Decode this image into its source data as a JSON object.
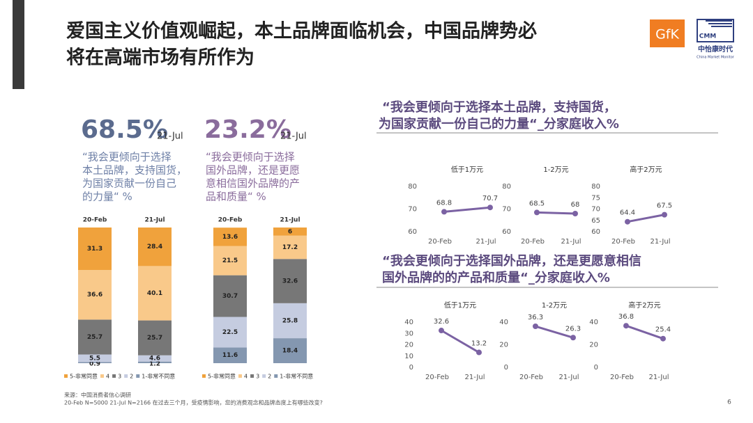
{
  "title": [
    "爱国主义价值观崛起，本土品牌面临机会，中国品牌势必",
    "将在高端市场有所作为"
  ],
  "logos": {
    "gfk": "GfK",
    "cmm": "CMM",
    "cmm_cn": "中怡康时代",
    "cmm_en": "China Market Monitor"
  },
  "stats": [
    {
      "value": "68.5%",
      "date": "21-Jul",
      "text": [
        "“我会更倾向于选择",
        "本土品牌，支持国货，",
        "为国家贡献一份自己",
        "的力量“ %"
      ]
    },
    {
      "value": "23.2%",
      "date": "21-Jul",
      "text": [
        "“我会更倾向于选择",
        "国外品牌，还是更愿",
        "意相信国外品牌的产",
        "品和质量“ %"
      ]
    }
  ],
  "right_titles": [
    [
      "“我会更倾向于选择本土品牌，支持国货，",
      "为国家贡献一份自己的力量“_分家庭收入%"
    ],
    [
      "“我会更倾向于选择国外品牌，还是更愿意相信",
      "国外品牌的的产品和质量“_分家庭收入%"
    ]
  ],
  "footnote": [
    "来源：中国消费者信心调研",
    "20-Feb N=5000 21-Jul N=2166  在过去三个月，受疫情影响，您的消费观念和品牌态度上有哪些改变?"
  ],
  "page_number": "6",
  "chart_data": [
    {
      "type": "stacked_bar",
      "categories": [
        "20-Feb",
        "21-Jul"
      ],
      "ylim": [
        0,
        100
      ],
      "legend": "bottom",
      "series": [
        {
          "name": "5-非常同意",
          "color": "#F0A23C",
          "values": [
            31.3,
            28.4
          ]
        },
        {
          "name": "4",
          "color": "#F9C98A",
          "values": [
            36.6,
            40.1
          ]
        },
        {
          "name": "3",
          "color": "#777777",
          "values": [
            25.7,
            25.7
          ]
        },
        {
          "name": "2",
          "color": "#C5CCE0",
          "values": [
            5.5,
            4.6
          ]
        },
        {
          "name": "1-非常不同意",
          "color": "#8497B0",
          "values": [
            0.9,
            1.2
          ]
        }
      ]
    },
    {
      "type": "stacked_bar",
      "categories": [
        "20-Feb",
        "21-Jul"
      ],
      "ylim": [
        0,
        100
      ],
      "legend": "bottom",
      "series": [
        {
          "name": "5-非常同意",
          "color": "#F0A23C",
          "values": [
            13.6,
            6
          ]
        },
        {
          "name": "4",
          "color": "#F9C98A",
          "values": [
            21.5,
            17.2
          ]
        },
        {
          "name": "3",
          "color": "#777777",
          "values": [
            30.7,
            32.6
          ]
        },
        {
          "name": "2",
          "color": "#C5CCE0",
          "values": [
            22.5,
            25.8
          ]
        },
        {
          "name": "1-非常不同意",
          "color": "#8497B0",
          "values": [
            11.6,
            18.4
          ]
        }
      ]
    },
    {
      "type": "line",
      "title": "低于1万元",
      "categories": [
        "20-Feb",
        "21-Jul"
      ],
      "values": [
        68.8,
        70.7
      ],
      "color": "#7B62A3",
      "ylim": [
        60,
        80
      ],
      "yticks": [
        60,
        70,
        80
      ]
    },
    {
      "type": "line",
      "title": "1-2万元",
      "categories": [
        "20-Feb",
        "21-Jul"
      ],
      "values": [
        68.5,
        68
      ],
      "color": "#7B62A3",
      "ylim": [
        60,
        80
      ],
      "yticks": [
        60,
        70,
        80
      ]
    },
    {
      "type": "line",
      "title": "高于2万元",
      "categories": [
        "20-Feb",
        "21-Jul"
      ],
      "values": [
        64.4,
        67.5
      ],
      "color": "#7B62A3",
      "ylim": [
        60,
        80
      ],
      "yticks": [
        60,
        65,
        70,
        75,
        80
      ]
    },
    {
      "type": "line",
      "title": "低于1万元",
      "categories": [
        "20-Feb",
        "21-Jul"
      ],
      "values": [
        32.6,
        13.2
      ],
      "color": "#7B62A3",
      "ylim": [
        0,
        40
      ],
      "yticks": [
        0,
        10,
        20,
        30,
        40
      ]
    },
    {
      "type": "line",
      "title": "1-2万元",
      "categories": [
        "20-Feb",
        "21-Jul"
      ],
      "values": [
        36.3,
        26.3
      ],
      "color": "#7B62A3",
      "ylim": [
        0,
        40
      ],
      "yticks": [
        0,
        20,
        40
      ]
    },
    {
      "type": "line",
      "title": "高于2万元",
      "categories": [
        "20-Feb",
        "21-Jul"
      ],
      "values": [
        36.8,
        25.4
      ],
      "color": "#7B62A3",
      "ylim": [
        0,
        40
      ],
      "yticks": [
        0,
        20,
        40
      ]
    }
  ]
}
